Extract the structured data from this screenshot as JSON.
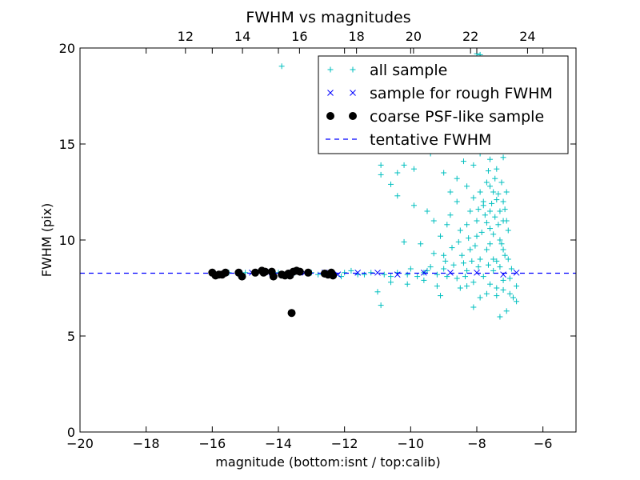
{
  "chart_data": {
    "type": "scatter",
    "title": "FWHM vs magnitudes",
    "xlabel": "magnitude (bottom:isnt / top:calib)",
    "ylabel": "FWHM (pix)",
    "xlim": [
      -20,
      -5
    ],
    "ylim": [
      0,
      20
    ],
    "top_xlim": [
      8.3,
      25.7
    ],
    "x_ticks": [
      -20,
      -18,
      -16,
      -14,
      -12,
      -10,
      -8,
      -6
    ],
    "x_tick_labels": [
      "−20",
      "−18",
      "−16",
      "−14",
      "−12",
      "−10",
      "−8",
      "−6"
    ],
    "y_ticks": [
      0,
      5,
      10,
      15,
      20
    ],
    "y_tick_labels": [
      "0",
      "5",
      "10",
      "15",
      "20"
    ],
    "top_x_ticks": [
      12,
      14,
      16,
      18,
      20,
      22,
      24
    ],
    "top_x_tick_labels": [
      "12",
      "14",
      "16",
      "18",
      "20",
      "22",
      "24"
    ],
    "grid": false,
    "legend_position": "top-right",
    "colors": {
      "all_sample": "#00bfbf",
      "rough_sample": "#0000ff",
      "psf_sample": "#000000",
      "tentative": "#0000ff"
    },
    "series": [
      {
        "name": "all sample",
        "marker": "plus",
        "points": [
          [
            -13.9,
            19.05
          ],
          [
            -8.0,
            19.7
          ],
          [
            -7.9,
            19.65
          ],
          [
            -10.9,
            13.9
          ],
          [
            -10.9,
            13.4
          ],
          [
            -10.2,
            13.9
          ],
          [
            -10.4,
            13.5
          ],
          [
            -10.6,
            12.9
          ],
          [
            -9.4,
            14.5
          ],
          [
            -9.0,
            13.5
          ],
          [
            -8.6,
            13.2
          ],
          [
            -8.3,
            12.8
          ],
          [
            -8.1,
            13.9
          ],
          [
            -7.9,
            12.5
          ],
          [
            -7.7,
            13.0
          ],
          [
            -7.6,
            12.8
          ],
          [
            -7.4,
            12.1
          ],
          [
            -7.3,
            11.5
          ],
          [
            -7.2,
            11.0
          ],
          [
            -7.6,
            11.5
          ],
          [
            -7.8,
            11.8
          ],
          [
            -8.0,
            11.0
          ],
          [
            -8.2,
            11.5
          ],
          [
            -8.5,
            10.5
          ],
          [
            -8.8,
            11.3
          ],
          [
            -9.5,
            11.5
          ],
          [
            -9.9,
            11.8
          ],
          [
            -9.3,
            11.0
          ],
          [
            -9.1,
            10.2
          ],
          [
            -8.9,
            10.8
          ],
          [
            -7.5,
            10.3
          ],
          [
            -7.3,
            10.0
          ],
          [
            -7.2,
            9.5
          ],
          [
            -7.6,
            9.8
          ],
          [
            -7.9,
            9.0
          ],
          [
            -8.2,
            9.5
          ],
          [
            -8.4,
            8.8
          ],
          [
            -9.0,
            9.2
          ],
          [
            -9.3,
            9.3
          ],
          [
            -9.7,
            9.8
          ],
          [
            -10.2,
            9.9
          ],
          [
            -10.0,
            8.5
          ],
          [
            -9.0,
            8.5
          ],
          [
            -8.7,
            8.7
          ],
          [
            -7.4,
            8.9
          ],
          [
            -7.3,
            8.6
          ],
          [
            -7.5,
            8.4
          ],
          [
            -7.8,
            8.1
          ],
          [
            -8.3,
            8.4
          ],
          [
            -8.6,
            8.0
          ],
          [
            -9.2,
            8.2
          ],
          [
            -9.8,
            8.1
          ],
          [
            -10.4,
            8.3
          ],
          [
            -10.8,
            8.2
          ],
          [
            -11.2,
            8.3
          ],
          [
            -11.6,
            8.2
          ],
          [
            -12.0,
            8.3
          ],
          [
            -12.3,
            8.2
          ],
          [
            -10.6,
            7.8
          ],
          [
            -11.0,
            7.3
          ],
          [
            -10.9,
            6.6
          ],
          [
            -9.2,
            7.6
          ],
          [
            -8.5,
            7.5
          ],
          [
            -8.1,
            7.8
          ],
          [
            -7.7,
            7.2
          ],
          [
            -7.4,
            7.5
          ],
          [
            -7.2,
            7.9
          ],
          [
            -7.0,
            7.2
          ],
          [
            -6.9,
            7.0
          ],
          [
            -6.8,
            6.8
          ],
          [
            -7.1,
            6.3
          ],
          [
            -7.3,
            6.0
          ],
          [
            -8.1,
            6.5
          ],
          [
            -9.1,
            7.1
          ],
          [
            -6.8,
            7.6
          ],
          [
            -7.0,
            8.0
          ],
          [
            -7.1,
            11.0
          ],
          [
            -7.2,
            12.0
          ],
          [
            -7.4,
            13.7
          ],
          [
            -7.6,
            14.2
          ],
          [
            -7.8,
            15.0
          ],
          [
            -8.0,
            16.0
          ],
          [
            -8.2,
            16.3
          ],
          [
            -7.9,
            17.0
          ],
          [
            -7.7,
            17.5
          ],
          [
            -7.5,
            16.8
          ],
          [
            -7.3,
            15.5
          ],
          [
            -7.2,
            14.3
          ],
          [
            -7.1,
            12.5
          ],
          [
            -7.05,
            10.5
          ],
          [
            -7.15,
            9.2
          ],
          [
            -7.5,
            9.0
          ],
          [
            -7.7,
            9.5
          ],
          [
            -8.0,
            10.2
          ],
          [
            -8.3,
            10.8
          ],
          [
            -8.6,
            12.0
          ],
          [
            -8.8,
            12.5
          ],
          [
            -9.6,
            15.0
          ],
          [
            -9.9,
            13.7
          ],
          [
            -10.4,
            12.3
          ],
          [
            -8.4,
            14.1
          ],
          [
            -7.9,
            14.5
          ],
          [
            -7.6,
            15.8
          ],
          [
            -7.4,
            16.5
          ],
          [
            -7.3,
            17.2
          ],
          [
            -7.5,
            12.5
          ],
          [
            -7.8,
            12.0
          ],
          [
            -8.1,
            12.2
          ],
          [
            -7.45,
            11.2
          ],
          [
            -7.35,
            10.8
          ],
          [
            -7.25,
            9.8
          ],
          [
            -7.6,
            10.6
          ],
          [
            -7.7,
            10.9
          ],
          [
            -7.85,
            10.4
          ],
          [
            -8.05,
            9.7
          ],
          [
            -8.15,
            8.9
          ],
          [
            -8.45,
            9.2
          ],
          [
            -8.75,
            9.6
          ],
          [
            -8.95,
            8.9
          ],
          [
            -9.4,
            8.6
          ],
          [
            -9.6,
            8.3
          ],
          [
            -10.1,
            8.2
          ],
          [
            -11.4,
            8.2
          ],
          [
            -12.5,
            8.2
          ],
          [
            -13.0,
            8.3
          ],
          [
            -13.5,
            8.3
          ],
          [
            -14.0,
            8.3
          ],
          [
            -14.5,
            8.3
          ],
          [
            -15.0,
            8.3
          ],
          [
            -15.5,
            8.3
          ],
          [
            -16.0,
            8.3
          ],
          [
            -7.35,
            12.4
          ],
          [
            -7.45,
            13.2
          ],
          [
            -7.65,
            13.6
          ],
          [
            -7.25,
            13.0
          ],
          [
            -7.15,
            11.6
          ],
          [
            -7.55,
            11.9
          ],
          [
            -7.75,
            11.3
          ],
          [
            -7.95,
            11.6
          ],
          [
            -8.25,
            10.1
          ],
          [
            -8.55,
            9.9
          ],
          [
            -7.05,
            9.0
          ],
          [
            -6.95,
            8.5
          ],
          [
            -7.65,
            8.7
          ],
          [
            -7.95,
            8.6
          ],
          [
            -8.35,
            8.1
          ],
          [
            -8.9,
            8.1
          ],
          [
            -9.5,
            8.4
          ],
          [
            -10.6,
            8.1
          ],
          [
            -11.8,
            8.4
          ],
          [
            -12.1,
            8.1
          ],
          [
            -12.8,
            8.2
          ],
          [
            -7.2,
            7.4
          ],
          [
            -7.4,
            7.1
          ],
          [
            -7.6,
            7.7
          ],
          [
            -7.9,
            7.0
          ],
          [
            -8.3,
            7.6
          ],
          [
            -9.6,
            7.9
          ],
          [
            -10.1,
            7.7
          ]
        ]
      },
      {
        "name": "sample for rough FWHM",
        "marker": "x",
        "points": [
          [
            -16.0,
            8.3
          ],
          [
            -15.8,
            8.2
          ],
          [
            -15.6,
            8.3
          ],
          [
            -15.2,
            8.3
          ],
          [
            -14.8,
            8.3
          ],
          [
            -14.6,
            8.35
          ],
          [
            -14.4,
            8.35
          ],
          [
            -14.2,
            8.3
          ],
          [
            -13.9,
            8.2
          ],
          [
            -13.6,
            8.3
          ],
          [
            -13.4,
            8.35
          ],
          [
            -13.2,
            8.3
          ],
          [
            -12.6,
            8.3
          ],
          [
            -12.4,
            8.2
          ],
          [
            -12.2,
            8.2
          ],
          [
            -11.6,
            8.3
          ],
          [
            -11.0,
            8.3
          ],
          [
            -10.4,
            8.2
          ],
          [
            -9.6,
            8.3
          ],
          [
            -8.8,
            8.3
          ],
          [
            -8.0,
            8.3
          ],
          [
            -7.2,
            8.2
          ],
          [
            -6.8,
            8.3
          ]
        ]
      },
      {
        "name": "coarse PSF-like sample",
        "marker": "circle",
        "points": [
          [
            -16.0,
            8.3
          ],
          [
            -15.9,
            8.15
          ],
          [
            -15.8,
            8.2
          ],
          [
            -15.7,
            8.2
          ],
          [
            -15.6,
            8.3
          ],
          [
            -15.2,
            8.3
          ],
          [
            -15.1,
            8.1
          ],
          [
            -14.7,
            8.3
          ],
          [
            -14.5,
            8.4
          ],
          [
            -14.45,
            8.3
          ],
          [
            -14.4,
            8.35
          ],
          [
            -14.2,
            8.35
          ],
          [
            -14.15,
            8.1
          ],
          [
            -13.9,
            8.2
          ],
          [
            -13.8,
            8.15
          ],
          [
            -13.7,
            8.25
          ],
          [
            -13.65,
            8.15
          ],
          [
            -13.55,
            8.35
          ],
          [
            -13.45,
            8.4
          ],
          [
            -13.35,
            8.35
          ],
          [
            -13.1,
            8.3
          ],
          [
            -12.6,
            8.25
          ],
          [
            -12.5,
            8.2
          ],
          [
            -12.4,
            8.3
          ],
          [
            -12.35,
            8.15
          ],
          [
            -13.6,
            6.2
          ]
        ]
      },
      {
        "name": "tentative FWHM",
        "marker": "dashed-line",
        "y": 8.27
      }
    ]
  }
}
